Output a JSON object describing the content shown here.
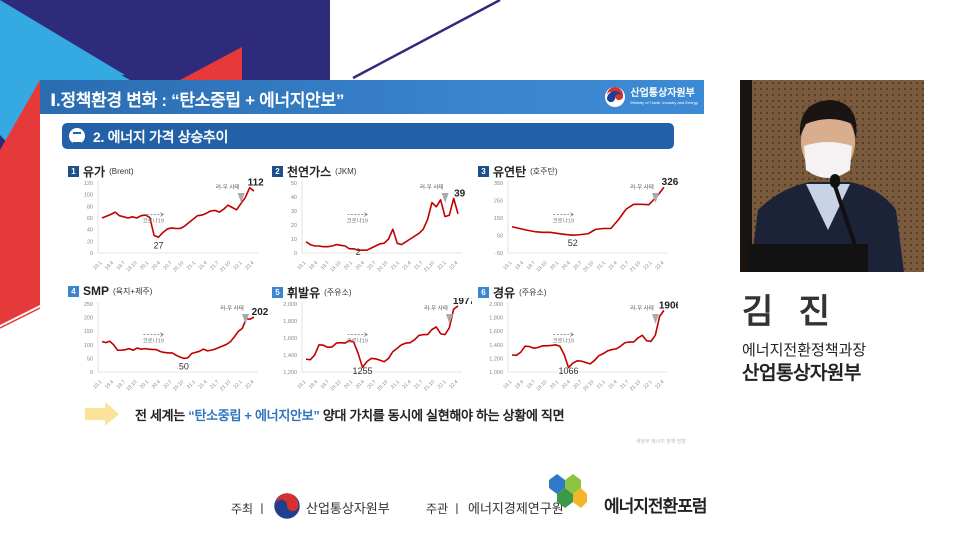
{
  "slide": {
    "title": "Ⅰ.정책환경 변화 : “탄소중립 + 에너지안보”",
    "logo": {
      "ko": "산업통상자원부",
      "en": "Ministry of Trade, Industry and Energy"
    },
    "section": "2. 에너지 가격 상승추이",
    "conclusion": {
      "prefix": "전 세계는 ",
      "highlight": "“탄소중립 + 에너지안보”",
      "suffix": " 양대 가치를 동시에 실현해야 하는 상황에  직면"
    },
    "source_note": "새정부 에너지 정책 방향"
  },
  "speaker": {
    "name": "김 진",
    "title": "에너지전환정책과장",
    "org": "산업통상자원부"
  },
  "footer": {
    "host_label": "주최 ㅣ",
    "host": "산업통상자원부",
    "organizer_label": "주관 ㅣ",
    "organizer": "에너지경제연구원",
    "event_logo": "에너지전환포럼"
  },
  "colors": {
    "header_blue": "#2a6cb0",
    "section_blue": "#2261a8",
    "line_red": "#c00000",
    "highlight_blue": "#2e74c0",
    "arrow_yellow": "#fce39a",
    "deco_navy": "#2e2b7d",
    "deco_cyan": "#35a9e1",
    "deco_red": "#e63a3a"
  },
  "chart_data": [
    {
      "type": "line",
      "num": "1",
      "title": "유가",
      "subtitle": "(Brent)",
      "categories": [
        "19.1",
        "19.4",
        "19.7",
        "19.10",
        "20.1",
        "20.4",
        "20.7",
        "20.10",
        "21.1",
        "21.4",
        "21.7",
        "21.10",
        "22.1",
        "22.4"
      ],
      "ylim": [
        0,
        120
      ],
      "yticks": [
        "0",
        "20",
        "40",
        "60",
        "80",
        "100",
        "120"
      ],
      "values": [
        60,
        63,
        66,
        70,
        64,
        62,
        60,
        62,
        60,
        64,
        65,
        61,
        30,
        27,
        35,
        41,
        43,
        42,
        42,
        46,
        52,
        58,
        64,
        65,
        68,
        72,
        73,
        70,
        75,
        82,
        78,
        74,
        85,
        95,
        112,
        106
      ],
      "annotations": {
        "covid": "코로나19",
        "war": "러-우 사태",
        "min": "27",
        "max": "112"
      }
    },
    {
      "type": "line",
      "num": "2",
      "title": "천연가스",
      "subtitle": "(JKM)",
      "categories": [
        "19.1",
        "19.4",
        "19.7",
        "19.10",
        "20.1",
        "20.4",
        "20.7",
        "20.10",
        "21.1",
        "21.4",
        "21.7",
        "21.10",
        "22.1",
        "22.4"
      ],
      "ylim": [
        0,
        50
      ],
      "yticks": [
        "0",
        "10",
        "20",
        "30",
        "40",
        "50"
      ],
      "values": [
        8,
        6,
        5,
        5,
        4.5,
        4.5,
        5,
        6,
        5.5,
        5,
        3,
        3,
        2,
        2,
        2,
        3.5,
        5,
        6.5,
        7,
        10,
        17,
        7,
        6,
        8,
        10,
        12,
        14,
        17,
        24,
        36,
        33,
        38,
        26,
        27,
        39,
        28
      ],
      "annotations": {
        "covid": "코로나19",
        "war": "러-우 사태",
        "min": "2",
        "max": "39"
      }
    },
    {
      "type": "line",
      "num": "3",
      "title": "유연탄",
      "subtitle": "(호주탄)",
      "categories": [
        "19.1",
        "19.4",
        "19.7",
        "19.10",
        "20.1",
        "20.4",
        "20.7",
        "20.10",
        "21.1",
        "21.4",
        "21.7",
        "21.10",
        "22.1",
        "22.4"
      ],
      "ylim": [
        -50,
        350
      ],
      "yticks": [
        "-50",
        "50",
        "150",
        "250",
        "350"
      ],
      "values": [
        100,
        90,
        80,
        72,
        68,
        68,
        62,
        56,
        52,
        55,
        60,
        85,
        90,
        90,
        140,
        200,
        228,
        228,
        226,
        270,
        326
      ],
      "annotations": {
        "covid": "코로나19",
        "war": "러-우 사태",
        "min": "52",
        "max": "326"
      }
    },
    {
      "type": "line",
      "num": "4",
      "title": "SMP",
      "subtitle": "(육지+제주)",
      "categories": [
        "19.1",
        "19.4",
        "19.7",
        "19.10",
        "20.1",
        "20.4",
        "20.7",
        "20.10",
        "21.1",
        "21.4",
        "21.7",
        "21.10",
        "22.1",
        "22.4"
      ],
      "ylim": [
        0,
        250
      ],
      "yticks": [
        "0",
        "50",
        "100",
        "150",
        "200",
        "250"
      ],
      "values": [
        112,
        108,
        113,
        100,
        80,
        80,
        82,
        86,
        80,
        88,
        84,
        86,
        84,
        83,
        82,
        75,
        72,
        70,
        70,
        62,
        55,
        50,
        52,
        68,
        72,
        76,
        84,
        78,
        80,
        84,
        90,
        96,
        102,
        112,
        130,
        150,
        160,
        196,
        194,
        202
      ],
      "annotations": {
        "covid": "코로나19",
        "war": "러-우 사태",
        "min": "50",
        "max": "202"
      }
    },
    {
      "type": "line",
      "num": "5",
      "title": "휘발유",
      "subtitle": "(주유소)",
      "categories": [
        "19.1",
        "19.4",
        "19.7",
        "19.10",
        "20.1",
        "20.4",
        "20.7",
        "20.10",
        "21.1",
        "21.4",
        "21.7",
        "21.10",
        "22.1",
        "22.4"
      ],
      "ylim": [
        1200,
        2000
      ],
      "yticks": [
        "1,200",
        "1,400",
        "1,600",
        "1,800",
        "2,000"
      ],
      "values": [
        1350,
        1345,
        1400,
        1520,
        1515,
        1490,
        1495,
        1540,
        1545,
        1540,
        1570,
        1550,
        1420,
        1255,
        1320,
        1360,
        1355,
        1340,
        1320,
        1360,
        1440,
        1480,
        1520,
        1540,
        1545,
        1580,
        1630,
        1640,
        1640,
        1700,
        1730,
        1650,
        1640,
        1720,
        1940,
        1977
      ],
      "annotations": {
        "covid": "코로나19",
        "war": "러-우 사태",
        "min": "1255",
        "max": "1977"
      }
    },
    {
      "type": "line",
      "num": "6",
      "title": "경유",
      "subtitle": "(주유소)",
      "categories": [
        "19.1",
        "19.4",
        "19.7",
        "19.10",
        "20.1",
        "20.4",
        "20.7",
        "20.10",
        "21.1",
        "21.4",
        "21.7",
        "21.10",
        "22.1",
        "22.4"
      ],
      "ylim": [
        1000,
        2000
      ],
      "yticks": [
        "1,000",
        "1,200",
        "1,400",
        "1,600",
        "1,800",
        "2,000"
      ],
      "values": [
        1250,
        1245,
        1290,
        1380,
        1375,
        1350,
        1360,
        1385,
        1385,
        1390,
        1400,
        1380,
        1260,
        1066,
        1130,
        1165,
        1160,
        1140,
        1120,
        1170,
        1240,
        1270,
        1310,
        1330,
        1340,
        1380,
        1430,
        1440,
        1440,
        1500,
        1540,
        1460,
        1450,
        1540,
        1820,
        1906
      ],
      "annotations": {
        "covid": "코로나19",
        "war": "러-우 사태",
        "min": "1066",
        "max": "1906"
      }
    }
  ]
}
